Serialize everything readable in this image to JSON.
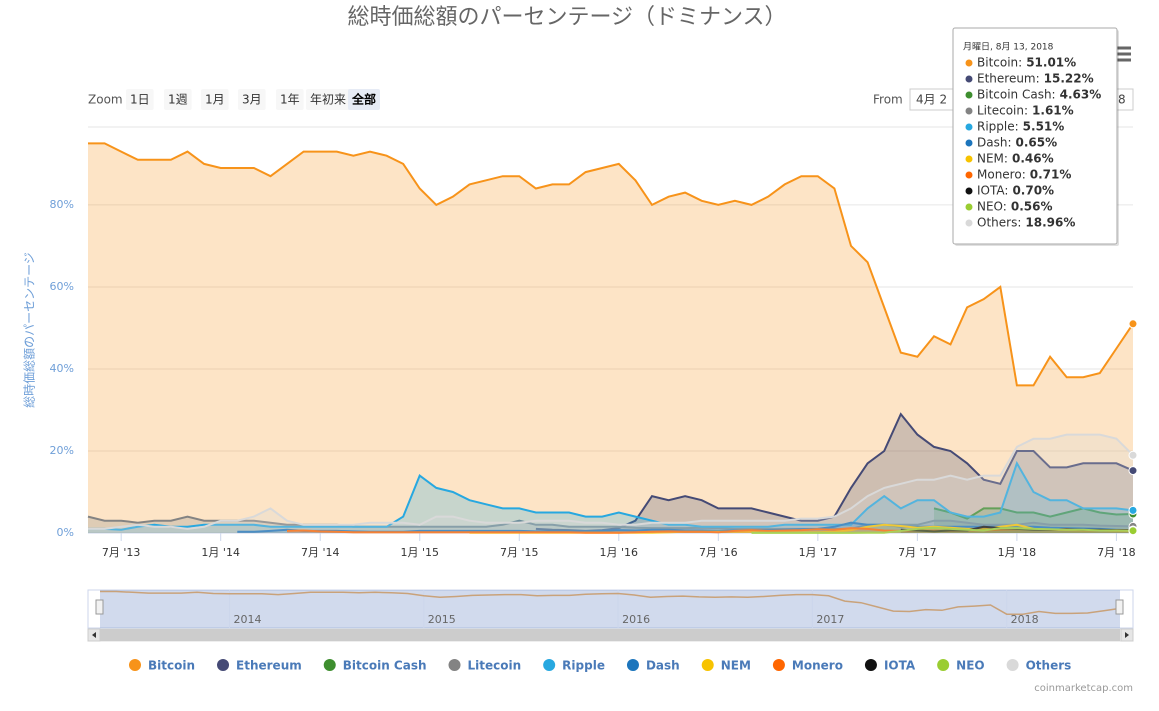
{
  "chart_data": {
    "type": "area",
    "title": "総時価総額のパーセンテージ（ドミナンス）",
    "y_label": "総時価総額のパーセンテージ",
    "x": [
      "2013-05",
      "2013-06",
      "2013-07",
      "2013-08",
      "2013-09",
      "2013-10",
      "2013-11",
      "2013-12",
      "2014-01",
      "2014-02",
      "2014-03",
      "2014-04",
      "2014-05",
      "2014-06",
      "2014-07",
      "2014-08",
      "2014-09",
      "2014-10",
      "2014-11",
      "2014-12",
      "2015-01",
      "2015-02",
      "2015-03",
      "2015-04",
      "2015-05",
      "2015-06",
      "2015-07",
      "2015-08",
      "2015-09",
      "2015-10",
      "2015-11",
      "2015-12",
      "2016-01",
      "2016-02",
      "2016-03",
      "2016-04",
      "2016-05",
      "2016-06",
      "2016-07",
      "2016-08",
      "2016-09",
      "2016-10",
      "2016-11",
      "2016-12",
      "2017-01",
      "2017-02",
      "2017-03",
      "2017-04",
      "2017-05",
      "2017-06",
      "2017-07",
      "2017-08",
      "2017-09",
      "2017-10",
      "2017-11",
      "2017-12",
      "2018-01",
      "2018-02",
      "2018-03",
      "2018-04",
      "2018-05",
      "2018-06",
      "2018-07",
      "2018-08"
    ],
    "xlim": [
      "2013-05",
      "2018-08"
    ],
    "xticks": [
      {
        "value": "2013-07",
        "label": "7月 '13"
      },
      {
        "value": "2014-01",
        "label": "1月 '14"
      },
      {
        "value": "2014-07",
        "label": "7月 '14"
      },
      {
        "value": "2015-01",
        "label": "1月 '15"
      },
      {
        "value": "2015-07",
        "label": "7月 '15"
      },
      {
        "value": "2016-01",
        "label": "1月 '16"
      },
      {
        "value": "2016-07",
        "label": "7月 '16"
      },
      {
        "value": "2017-01",
        "label": "1月 '17"
      },
      {
        "value": "2017-07",
        "label": "7月 '17"
      },
      {
        "value": "2018-01",
        "label": "1月 '18"
      },
      {
        "value": "2018-07",
        "label": "7月 '18"
      }
    ],
    "ylim": [
      0,
      99
    ],
    "yticks": [
      {
        "value": 0,
        "label": "0%"
      },
      {
        "value": 20,
        "label": "20%"
      },
      {
        "value": 40,
        "label": "40%"
      },
      {
        "value": 60,
        "label": "60%"
      },
      {
        "value": 80,
        "label": "80%"
      }
    ],
    "grid": true,
    "series": [
      {
        "name": "Bitcoin",
        "color": "#f7931a",
        "values": [
          95,
          95,
          93,
          91,
          91,
          91,
          93,
          90,
          89,
          89,
          89,
          87,
          90,
          93,
          93,
          93,
          92,
          93,
          92,
          90,
          84,
          80,
          82,
          85,
          86,
          87,
          87,
          84,
          85,
          85,
          88,
          89,
          90,
          86,
          80,
          82,
          83,
          81,
          80,
          81,
          80,
          82,
          85,
          87,
          87,
          84,
          70,
          66,
          55,
          44,
          43,
          48,
          46,
          55,
          57,
          60,
          36,
          36,
          43,
          38,
          38,
          39,
          45,
          51.01
        ]
      },
      {
        "name": "Ethereum",
        "color": "#454a75",
        "values": [
          null,
          null,
          null,
          null,
          null,
          null,
          null,
          null,
          null,
          null,
          null,
          null,
          null,
          null,
          null,
          null,
          null,
          null,
          null,
          null,
          null,
          null,
          null,
          null,
          null,
          null,
          null,
          1,
          0.8,
          0.7,
          0.5,
          0.7,
          1.2,
          3,
          9,
          8,
          9,
          8,
          6,
          6,
          6,
          5,
          4,
          3,
          3,
          4,
          11,
          17,
          20,
          29,
          24,
          21,
          20,
          17,
          13,
          12,
          20,
          20,
          16,
          16,
          17,
          17,
          17,
          15.22
        ]
      },
      {
        "name": "Bitcoin Cash",
        "color": "#3e8e2f",
        "values": [
          null,
          null,
          null,
          null,
          null,
          null,
          null,
          null,
          null,
          null,
          null,
          null,
          null,
          null,
          null,
          null,
          null,
          null,
          null,
          null,
          null,
          null,
          null,
          null,
          null,
          null,
          null,
          null,
          null,
          null,
          null,
          null,
          null,
          null,
          null,
          null,
          null,
          null,
          null,
          null,
          null,
          null,
          null,
          null,
          null,
          null,
          null,
          null,
          null,
          null,
          null,
          6,
          5,
          3.5,
          6,
          6,
          5,
          5,
          4,
          5,
          6,
          5,
          4.5,
          4.63
        ]
      },
      {
        "name": "Litecoin",
        "color": "#838383",
        "values": [
          4,
          3,
          3,
          2.5,
          3,
          3,
          4,
          3,
          3,
          3,
          3,
          2.5,
          2,
          2,
          2,
          2,
          1.5,
          1.5,
          1.5,
          1.5,
          1.5,
          1.5,
          1.5,
          1.5,
          1.5,
          2,
          3,
          2,
          2,
          1.5,
          1.5,
          1.5,
          1.5,
          1.3,
          1.2,
          1.2,
          1.2,
          1.3,
          1.2,
          1,
          1,
          1,
          1,
          1,
          1,
          1,
          1,
          2,
          2,
          2,
          2,
          3,
          3,
          2.5,
          2,
          2,
          2,
          2.5,
          2,
          2,
          2,
          1.8,
          1.7,
          1.61
        ]
      },
      {
        "name": "Ripple",
        "color": "#27a8e0",
        "values": [
          1,
          1,
          0.8,
          1.5,
          2,
          1.5,
          1.5,
          2,
          2,
          2,
          2,
          1.5,
          1.5,
          1.5,
          1.5,
          1.5,
          1.5,
          1.5,
          1.5,
          4,
          14,
          11,
          10,
          8,
          7,
          6,
          6,
          5,
          5,
          5,
          4,
          4,
          5,
          4,
          3,
          2,
          2,
          1.5,
          1.5,
          1.5,
          1.5,
          1.5,
          2,
          2,
          2,
          2,
          2,
          6,
          9,
          6,
          8,
          8,
          5,
          4,
          4,
          5,
          17,
          10,
          8,
          8,
          6,
          6,
          6,
          5.51
        ]
      },
      {
        "name": "Dash",
        "color": "#1c75bc",
        "values": [
          null,
          null,
          null,
          null,
          null,
          null,
          null,
          null,
          null,
          0.3,
          0.3,
          0.5,
          0.8,
          0.5,
          0.5,
          0.5,
          0.4,
          0.3,
          0.3,
          0.3,
          0.5,
          0.5,
          0.5,
          0.5,
          0.5,
          0.5,
          0.5,
          0.4,
          0.4,
          0.4,
          0.4,
          0.5,
          0.7,
          0.6,
          0.8,
          0.8,
          0.6,
          0.6,
          0.5,
          0.6,
          0.7,
          0.7,
          0.8,
          0.9,
          1,
          1.5,
          2.5,
          2,
          2,
          1.5,
          1.5,
          1.5,
          1.5,
          1.5,
          1.5,
          1.5,
          1.5,
          1.5,
          1.3,
          1.2,
          1.1,
          1,
          0.8,
          0.65
        ]
      },
      {
        "name": "NEM",
        "color": "#f7c300",
        "values": [
          null,
          null,
          null,
          null,
          null,
          null,
          null,
          null,
          null,
          null,
          null,
          null,
          null,
          null,
          null,
          null,
          null,
          null,
          null,
          null,
          null,
          null,
          null,
          0.1,
          0.1,
          0.1,
          0.1,
          0.1,
          0.1,
          0.1,
          0.1,
          0.1,
          0.1,
          0.1,
          0.1,
          0.2,
          0.3,
          0.3,
          0.3,
          0.3,
          0.3,
          0.2,
          0.2,
          0.2,
          0.2,
          0.3,
          0.7,
          1.5,
          2,
          1.7,
          1.3,
          1.5,
          1.3,
          1,
          1,
          1.5,
          2,
          1,
          0.8,
          0.7,
          0.6,
          0.6,
          0.5,
          0.46
        ]
      },
      {
        "name": "Monero",
        "color": "#ff6600",
        "values": [
          null,
          null,
          null,
          null,
          null,
          null,
          null,
          null,
          null,
          null,
          null,
          null,
          0.5,
          0.6,
          0.4,
          0.3,
          0.2,
          0.2,
          0.2,
          0.2,
          0.2,
          0.2,
          0.2,
          0.2,
          0.2,
          0.2,
          0.2,
          0.2,
          0.2,
          0.2,
          0.1,
          0.1,
          0.1,
          0.2,
          0.3,
          0.4,
          0.3,
          0.3,
          0.2,
          0.5,
          0.7,
          0.5,
          0.6,
          0.7,
          0.9,
          0.8,
          1.2,
          1,
          0.6,
          0.5,
          0.6,
          0.6,
          0.5,
          0.6,
          0.6,
          0.8,
          0.9,
          0.9,
          0.8,
          0.9,
          0.7,
          0.7,
          0.7,
          0.71
        ]
      },
      {
        "name": "IOTA",
        "color": "#111111",
        "values": [
          null,
          null,
          null,
          null,
          null,
          null,
          null,
          null,
          null,
          null,
          null,
          null,
          null,
          null,
          null,
          null,
          null,
          null,
          null,
          null,
          null,
          null,
          null,
          null,
          null,
          null,
          null,
          null,
          null,
          null,
          null,
          null,
          null,
          null,
          null,
          null,
          null,
          null,
          null,
          null,
          null,
          null,
          null,
          null,
          null,
          null,
          null,
          null,
          null,
          0.8,
          0.6,
          0.4,
          0.6,
          0.6,
          1.5,
          1.2,
          1,
          0.8,
          0.8,
          0.9,
          0.8,
          0.8,
          0.7,
          0.7
        ]
      },
      {
        "name": "NEO",
        "color": "#9acd32",
        "values": [
          null,
          null,
          null,
          null,
          null,
          null,
          null,
          null,
          null,
          null,
          null,
          null,
          null,
          null,
          null,
          null,
          null,
          null,
          null,
          null,
          null,
          null,
          null,
          null,
          null,
          null,
          null,
          null,
          null,
          null,
          null,
          null,
          null,
          null,
          null,
          null,
          null,
          null,
          null,
          null,
          0.05,
          0.05,
          0.05,
          0.05,
          0.05,
          0.05,
          0.05,
          0.1,
          0.1,
          0.5,
          1,
          1.3,
          1,
          0.8,
          0.6,
          1.2,
          1.2,
          1,
          0.9,
          0.8,
          0.8,
          0.6,
          0.6,
          0.56
        ]
      },
      {
        "name": "Others",
        "color": "#d9d9d9",
        "values": [
          1,
          1,
          1.5,
          2,
          1.5,
          1.5,
          1,
          1.5,
          3,
          3,
          4,
          6,
          3,
          2,
          2,
          2,
          2,
          2.5,
          2.5,
          2.5,
          2,
          4,
          4,
          3,
          2.5,
          2.5,
          2.5,
          3,
          3,
          3,
          2.5,
          2.5,
          2,
          2,
          2.5,
          2.5,
          2.5,
          3,
          3,
          3,
          3,
          3,
          3,
          3.5,
          3.5,
          4,
          6,
          9,
          11,
          12,
          13,
          13,
          14,
          13,
          14,
          14,
          21,
          23,
          23,
          24,
          24,
          24,
          23,
          18.96
        ]
      }
    ],
    "tooltip": {
      "title": "月曜日, 8月 13, 2018",
      "items": [
        {
          "label": "Bitcoin:",
          "value": "51.01%"
        },
        {
          "label": "Ethereum:",
          "value": "15.22%"
        },
        {
          "label": "Bitcoin Cash:",
          "value": "4.63%"
        },
        {
          "label": "Litecoin:",
          "value": "1.61%"
        },
        {
          "label": "Ripple:",
          "value": "5.51%"
        },
        {
          "label": "Dash:",
          "value": "0.65%"
        },
        {
          "label": "NEM:",
          "value": "0.46%"
        },
        {
          "label": "Monero:",
          "value": "0.71%"
        },
        {
          "label": "IOTA:",
          "value": "0.70%"
        },
        {
          "label": "NEO:",
          "value": "0.56%"
        },
        {
          "label": "Others:",
          "value": "18.96%"
        }
      ]
    },
    "range_selector": {
      "label": "Zoom",
      "buttons": [
        "1日",
        "1週",
        "1月",
        "3月",
        "1年",
        "年初来",
        "全部"
      ],
      "selected": 6,
      "from_label": "From",
      "from_value": "4月 2",
      "to_value": "8"
    },
    "navigator_ticks": [
      {
        "value": "2014-01",
        "label": "2014"
      },
      {
        "value": "2015-01",
        "label": "2015"
      },
      {
        "value": "2016-01",
        "label": "2016"
      },
      {
        "value": "2017-01",
        "label": "2017"
      },
      {
        "value": "2018-01",
        "label": "2018"
      }
    ],
    "credits": "coinmarketcap.com"
  }
}
